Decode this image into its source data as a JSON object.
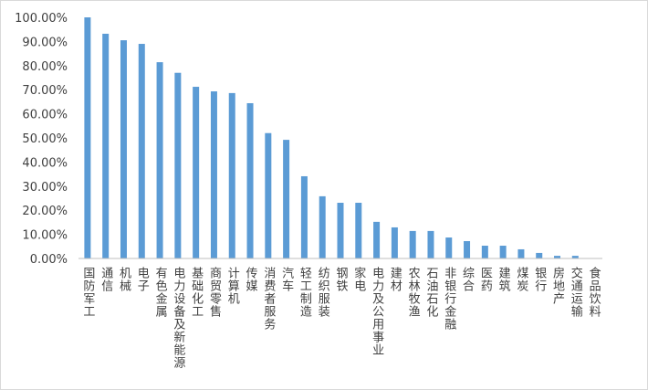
{
  "chart_data": {
    "type": "bar",
    "categories": [
      "国防军工",
      "通信",
      "机械",
      "电子",
      "有色金属",
      "电力设备及新能源",
      "基础化工",
      "商贸零售",
      "计算机",
      "传媒",
      "消费者服务",
      "汽车",
      "轻工制造",
      "纺织服装",
      "钢铁",
      "家电",
      "电力及公用事业",
      "建材",
      "农林牧渔",
      "石油石化",
      "非银行金融",
      "综合",
      "医药",
      "建筑",
      "煤炭",
      "银行",
      "房地产",
      "交通运输",
      "食品饮料"
    ],
    "values": [
      100,
      93.2,
      90.5,
      89,
      81.4,
      77,
      71.2,
      69.3,
      68.6,
      64.4,
      52,
      49.2,
      34.1,
      25.8,
      23.1,
      23.1,
      15.2,
      12.9,
      11.4,
      11.4,
      8.7,
      7.2,
      5.3,
      5.3,
      3.8,
      2.3,
      1.1,
      1.1,
      0
    ],
    "color": "#5b9bd5",
    "ylim": [
      0,
      100
    ],
    "yticks": [
      {
        "value": 0,
        "label": "0.00%"
      },
      {
        "value": 10,
        "label": "10.00%"
      },
      {
        "value": 20,
        "label": "20.00%"
      },
      {
        "value": 30,
        "label": "30.00%"
      },
      {
        "value": 40,
        "label": "40.00%"
      },
      {
        "value": 50,
        "label": "50.00%"
      },
      {
        "value": 60,
        "label": "60.00%"
      },
      {
        "value": 70,
        "label": "70.00%"
      },
      {
        "value": 80,
        "label": "80.00%"
      },
      {
        "value": 90,
        "label": "90.00%"
      },
      {
        "value": 100,
        "label": "100.00%"
      }
    ],
    "grid": false
  }
}
